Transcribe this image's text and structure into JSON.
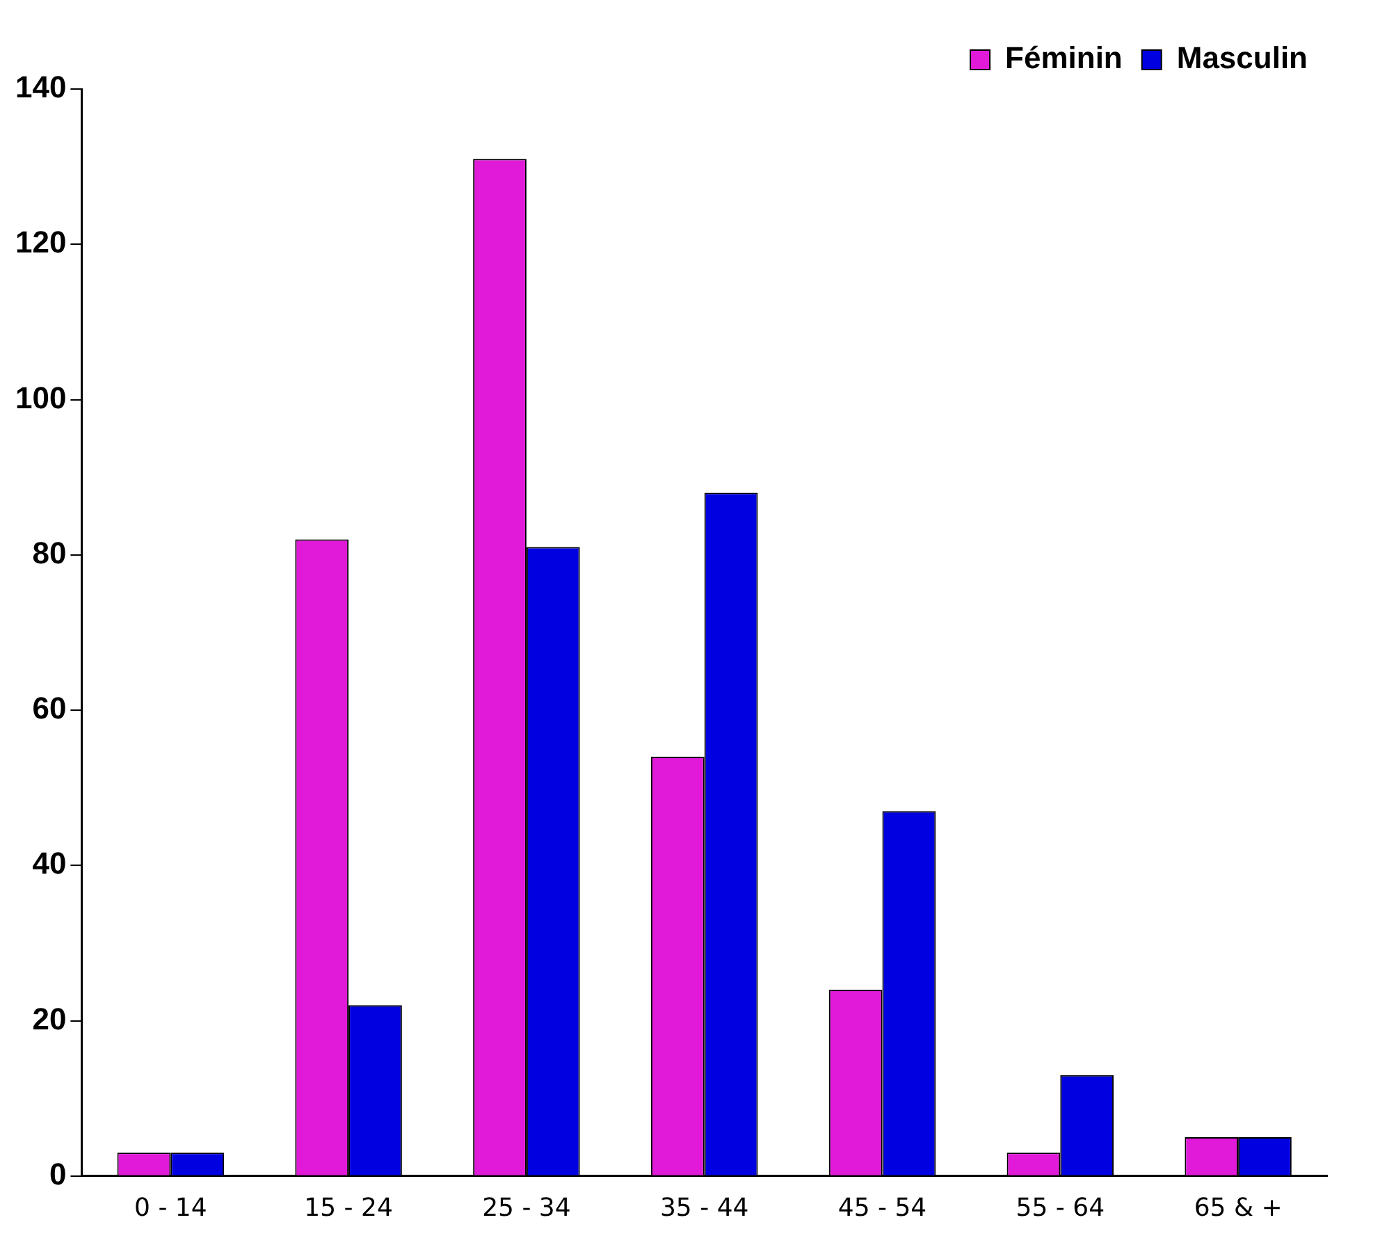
{
  "chart_data": {
    "type": "bar",
    "categories": [
      "0 - 14",
      "15 - 24",
      "25 - 34",
      "35 - 44",
      "45 - 54",
      "55 - 64",
      "65 & +"
    ],
    "series": [
      {
        "name": "Féminin",
        "color": "#e01ad8",
        "values": [
          3,
          82,
          131,
          54,
          24,
          3,
          5
        ]
      },
      {
        "name": "Masculin",
        "color": "#0000e0",
        "values": [
          3,
          22,
          81,
          88,
          47,
          13,
          5
        ]
      }
    ],
    "ylim": [
      0,
      140
    ],
    "yticks": [
      0,
      20,
      40,
      60,
      80,
      100,
      120,
      140
    ],
    "grid": false,
    "legend": "top right"
  }
}
